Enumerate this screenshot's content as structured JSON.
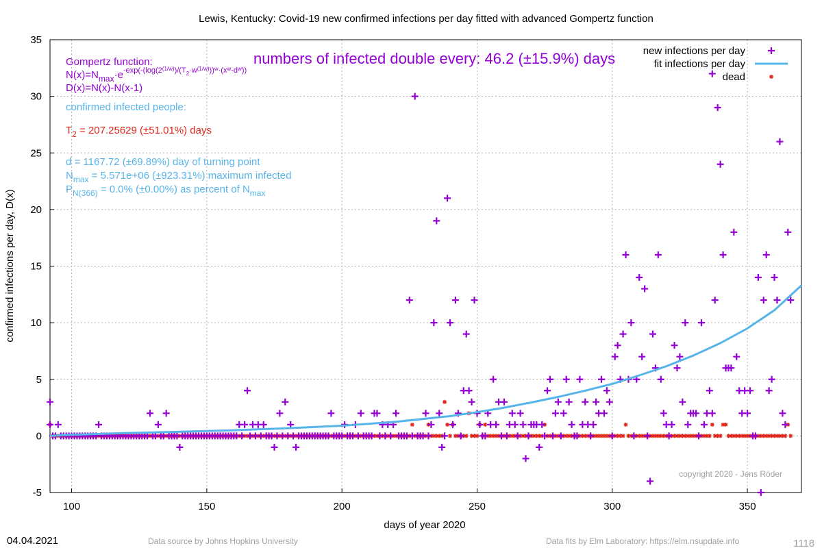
{
  "chart_data": {
    "type": "scatter",
    "title": "Lewis,  Kentucky: Covid-19 new confirmed infections per day fitted with advanced Gompertz function",
    "xlabel": "days of year 2020",
    "ylabel": "confirmed infections per day, D(x)",
    "xlim": [
      92,
      370
    ],
    "ylim": [
      -5,
      35
    ],
    "xticks": [
      100,
      150,
      200,
      250,
      300,
      350
    ],
    "yticks": [
      -5,
      0,
      5,
      10,
      15,
      20,
      25,
      30,
      35
    ],
    "grid": true,
    "legend_position": "top-right",
    "legend": {
      "new_infections": "new infections per day",
      "fit": "fit infections per day",
      "dead": "dead"
    },
    "colors": {
      "infections": "#9400d3",
      "fit": "#56b4e9",
      "dead": "#e0261c"
    },
    "infections_nonzero": [
      [
        92,
        3
      ],
      [
        92,
        1
      ],
      [
        95,
        1
      ],
      [
        110,
        1
      ],
      [
        129,
        2
      ],
      [
        132,
        1
      ],
      [
        135,
        2
      ],
      [
        140,
        -1
      ],
      [
        162,
        1
      ],
      [
        164,
        1
      ],
      [
        165,
        4
      ],
      [
        167,
        1
      ],
      [
        169,
        1
      ],
      [
        171,
        1
      ],
      [
        175,
        -1
      ],
      [
        177,
        2
      ],
      [
        179,
        3
      ],
      [
        181,
        1
      ],
      [
        183,
        -1
      ],
      [
        196,
        2
      ],
      [
        201,
        1
      ],
      [
        205,
        1
      ],
      [
        207,
        2
      ],
      [
        212,
        2
      ],
      [
        213,
        2
      ],
      [
        215,
        1
      ],
      [
        217,
        1
      ],
      [
        219,
        1
      ],
      [
        220,
        2
      ],
      [
        225,
        12
      ],
      [
        227,
        30
      ],
      [
        231,
        2
      ],
      [
        233,
        1
      ],
      [
        234,
        10
      ],
      [
        235,
        19
      ],
      [
        236,
        2
      ],
      [
        237,
        -1
      ],
      [
        239,
        21
      ],
      [
        240,
        10
      ],
      [
        241,
        1
      ],
      [
        242,
        12
      ],
      [
        243,
        2
      ],
      [
        245,
        4
      ],
      [
        246,
        9
      ],
      [
        247,
        4
      ],
      [
        248,
        3
      ],
      [
        249,
        12
      ],
      [
        250,
        2
      ],
      [
        251,
        1
      ],
      [
        254,
        2
      ],
      [
        255,
        1
      ],
      [
        256,
        5
      ],
      [
        257,
        1
      ],
      [
        258,
        3
      ],
      [
        260,
        3
      ],
      [
        262,
        1
      ],
      [
        263,
        2
      ],
      [
        264,
        1
      ],
      [
        266,
        2
      ],
      [
        267,
        1
      ],
      [
        268,
        -2
      ],
      [
        270,
        1
      ],
      [
        271,
        1
      ],
      [
        272,
        1
      ],
      [
        273,
        -1
      ],
      [
        274,
        1
      ],
      [
        276,
        4
      ],
      [
        277,
        5
      ],
      [
        279,
        2
      ],
      [
        280,
        3
      ],
      [
        282,
        2
      ],
      [
        283,
        5
      ],
      [
        284,
        3
      ],
      [
        285,
        1
      ],
      [
        288,
        5
      ],
      [
        289,
        1
      ],
      [
        290,
        3
      ],
      [
        291,
        1
      ],
      [
        293,
        1
      ],
      [
        294,
        3
      ],
      [
        295,
        2
      ],
      [
        296,
        5
      ],
      [
        297,
        2
      ],
      [
        298,
        4
      ],
      [
        299,
        3
      ],
      [
        301,
        7
      ],
      [
        302,
        8
      ],
      [
        303,
        5
      ],
      [
        304,
        9
      ],
      [
        305,
        16
      ],
      [
        306,
        5
      ],
      [
        307,
        10
      ],
      [
        309,
        5
      ],
      [
        310,
        14
      ],
      [
        311,
        7
      ],
      [
        312,
        13
      ],
      [
        314,
        -4
      ],
      [
        315,
        9
      ],
      [
        316,
        6
      ],
      [
        317,
        16
      ],
      [
        318,
        5
      ],
      [
        319,
        2
      ],
      [
        320,
        1
      ],
      [
        322,
        1
      ],
      [
        323,
        8
      ],
      [
        324,
        6
      ],
      [
        325,
        7
      ],
      [
        326,
        3
      ],
      [
        327,
        10
      ],
      [
        328,
        1
      ],
      [
        329,
        2
      ],
      [
        330,
        2
      ],
      [
        331,
        2
      ],
      [
        333,
        10
      ],
      [
        334,
        1
      ],
      [
        335,
        2
      ],
      [
        336,
        4
      ],
      [
        337,
        2
      ],
      [
        337,
        32
      ],
      [
        338,
        12
      ],
      [
        339,
        29
      ],
      [
        340,
        24
      ],
      [
        341,
        16
      ],
      [
        342,
        6
      ],
      [
        343,
        6
      ],
      [
        344,
        6
      ],
      [
        345,
        18
      ],
      [
        346,
        7
      ],
      [
        347,
        4
      ],
      [
        348,
        2
      ],
      [
        349,
        4
      ],
      [
        350,
        2
      ],
      [
        351,
        4
      ],
      [
        354,
        14
      ],
      [
        355,
        -5
      ],
      [
        356,
        12
      ],
      [
        357,
        16
      ],
      [
        358,
        4
      ],
      [
        359,
        5
      ],
      [
        360,
        14
      ],
      [
        361,
        12
      ],
      [
        362,
        26
      ],
      [
        363,
        2
      ],
      [
        364,
        1
      ],
      [
        365,
        18
      ],
      [
        366,
        12
      ]
    ],
    "infections_zero_range": [
      92,
      366
    ],
    "dead_nonzero": [
      [
        92,
        1
      ],
      [
        226,
        1
      ],
      [
        232,
        1
      ],
      [
        238,
        3
      ],
      [
        239,
        1
      ],
      [
        241,
        1
      ],
      [
        247,
        2
      ],
      [
        251,
        1
      ],
      [
        253,
        1
      ],
      [
        275,
        1
      ],
      [
        305,
        1
      ],
      [
        337,
        1
      ],
      [
        341,
        1
      ],
      [
        342,
        1
      ],
      [
        365,
        1
      ]
    ],
    "dead_zero_range": [
      92,
      366
    ],
    "fit_curve": [
      [
        92,
        0.0
      ],
      [
        100,
        0.1
      ],
      [
        120,
        0.25
      ],
      [
        140,
        0.37
      ],
      [
        160,
        0.5
      ],
      [
        180,
        0.68
      ],
      [
        200,
        0.9
      ],
      [
        220,
        1.25
      ],
      [
        240,
        1.75
      ],
      [
        250,
        2.1
      ],
      [
        260,
        2.5
      ],
      [
        270,
        2.95
      ],
      [
        280,
        3.45
      ],
      [
        290,
        4.0
      ],
      [
        300,
        4.6
      ],
      [
        310,
        5.35
      ],
      [
        320,
        6.15
      ],
      [
        330,
        7.1
      ],
      [
        340,
        8.2
      ],
      [
        350,
        9.5
      ],
      [
        360,
        11.1
      ],
      [
        370,
        13.3
      ]
    ]
  },
  "annotations": {
    "gompertz_title": "Gompertz function:",
    "gompertz_n_main": "N(x)=N",
    "gompertz_n_sub": "max",
    "gompertz_n_dot": "·e",
    "gompertz_n_exp": "-exp(-(log(2",
    "gompertz_n_exp_a": "(1/w)",
    "gompertz_n_exp_b": ")/(T",
    "gompertz_n_exp_c": "2",
    "gompertz_n_exp_d": "·w",
    "gompertz_n_exp_e": "(1/w)",
    "gompertz_n_exp_f": "))",
    "gompertz_n_exp_g": "w",
    "gompertz_n_exp_h": "·(x",
    "gompertz_n_exp_i": "w",
    "gompertz_n_exp_j": "-d",
    "gompertz_n_exp_k": "w",
    "gompertz_n_exp_l": "))",
    "gompertz_d": "D(x)=N(x)-N(x-1)",
    "confirmed_label": "confirmed infected people:",
    "t2_main": "T",
    "t2_sub": "2",
    "t2_rest": " = 207.25629 (±51.01%) days",
    "turning_point": "d = 1167.72 (±69.89%) day of turning point",
    "nmax_n": "N",
    "nmax_sub": "max",
    "nmax_rest": " = 5.571e+06 (±923.31%) maximum infected",
    "p_main": "P",
    "p_sub": "N(366)",
    "p_rest": " = 0.0% (±0.00%) as percent of N",
    "p_sub2": "max",
    "doubling": "numbers of infected double every: 46.2 (±15.9%) days",
    "copyright": "copyright 2020 - Jens Röder"
  },
  "footer": {
    "date": "04.04.2021",
    "source": "Data source by Johns Hopkins University",
    "fits": "Data fits by Elm Laboratory: https://elm.nsupdate.info",
    "code": "1118"
  }
}
